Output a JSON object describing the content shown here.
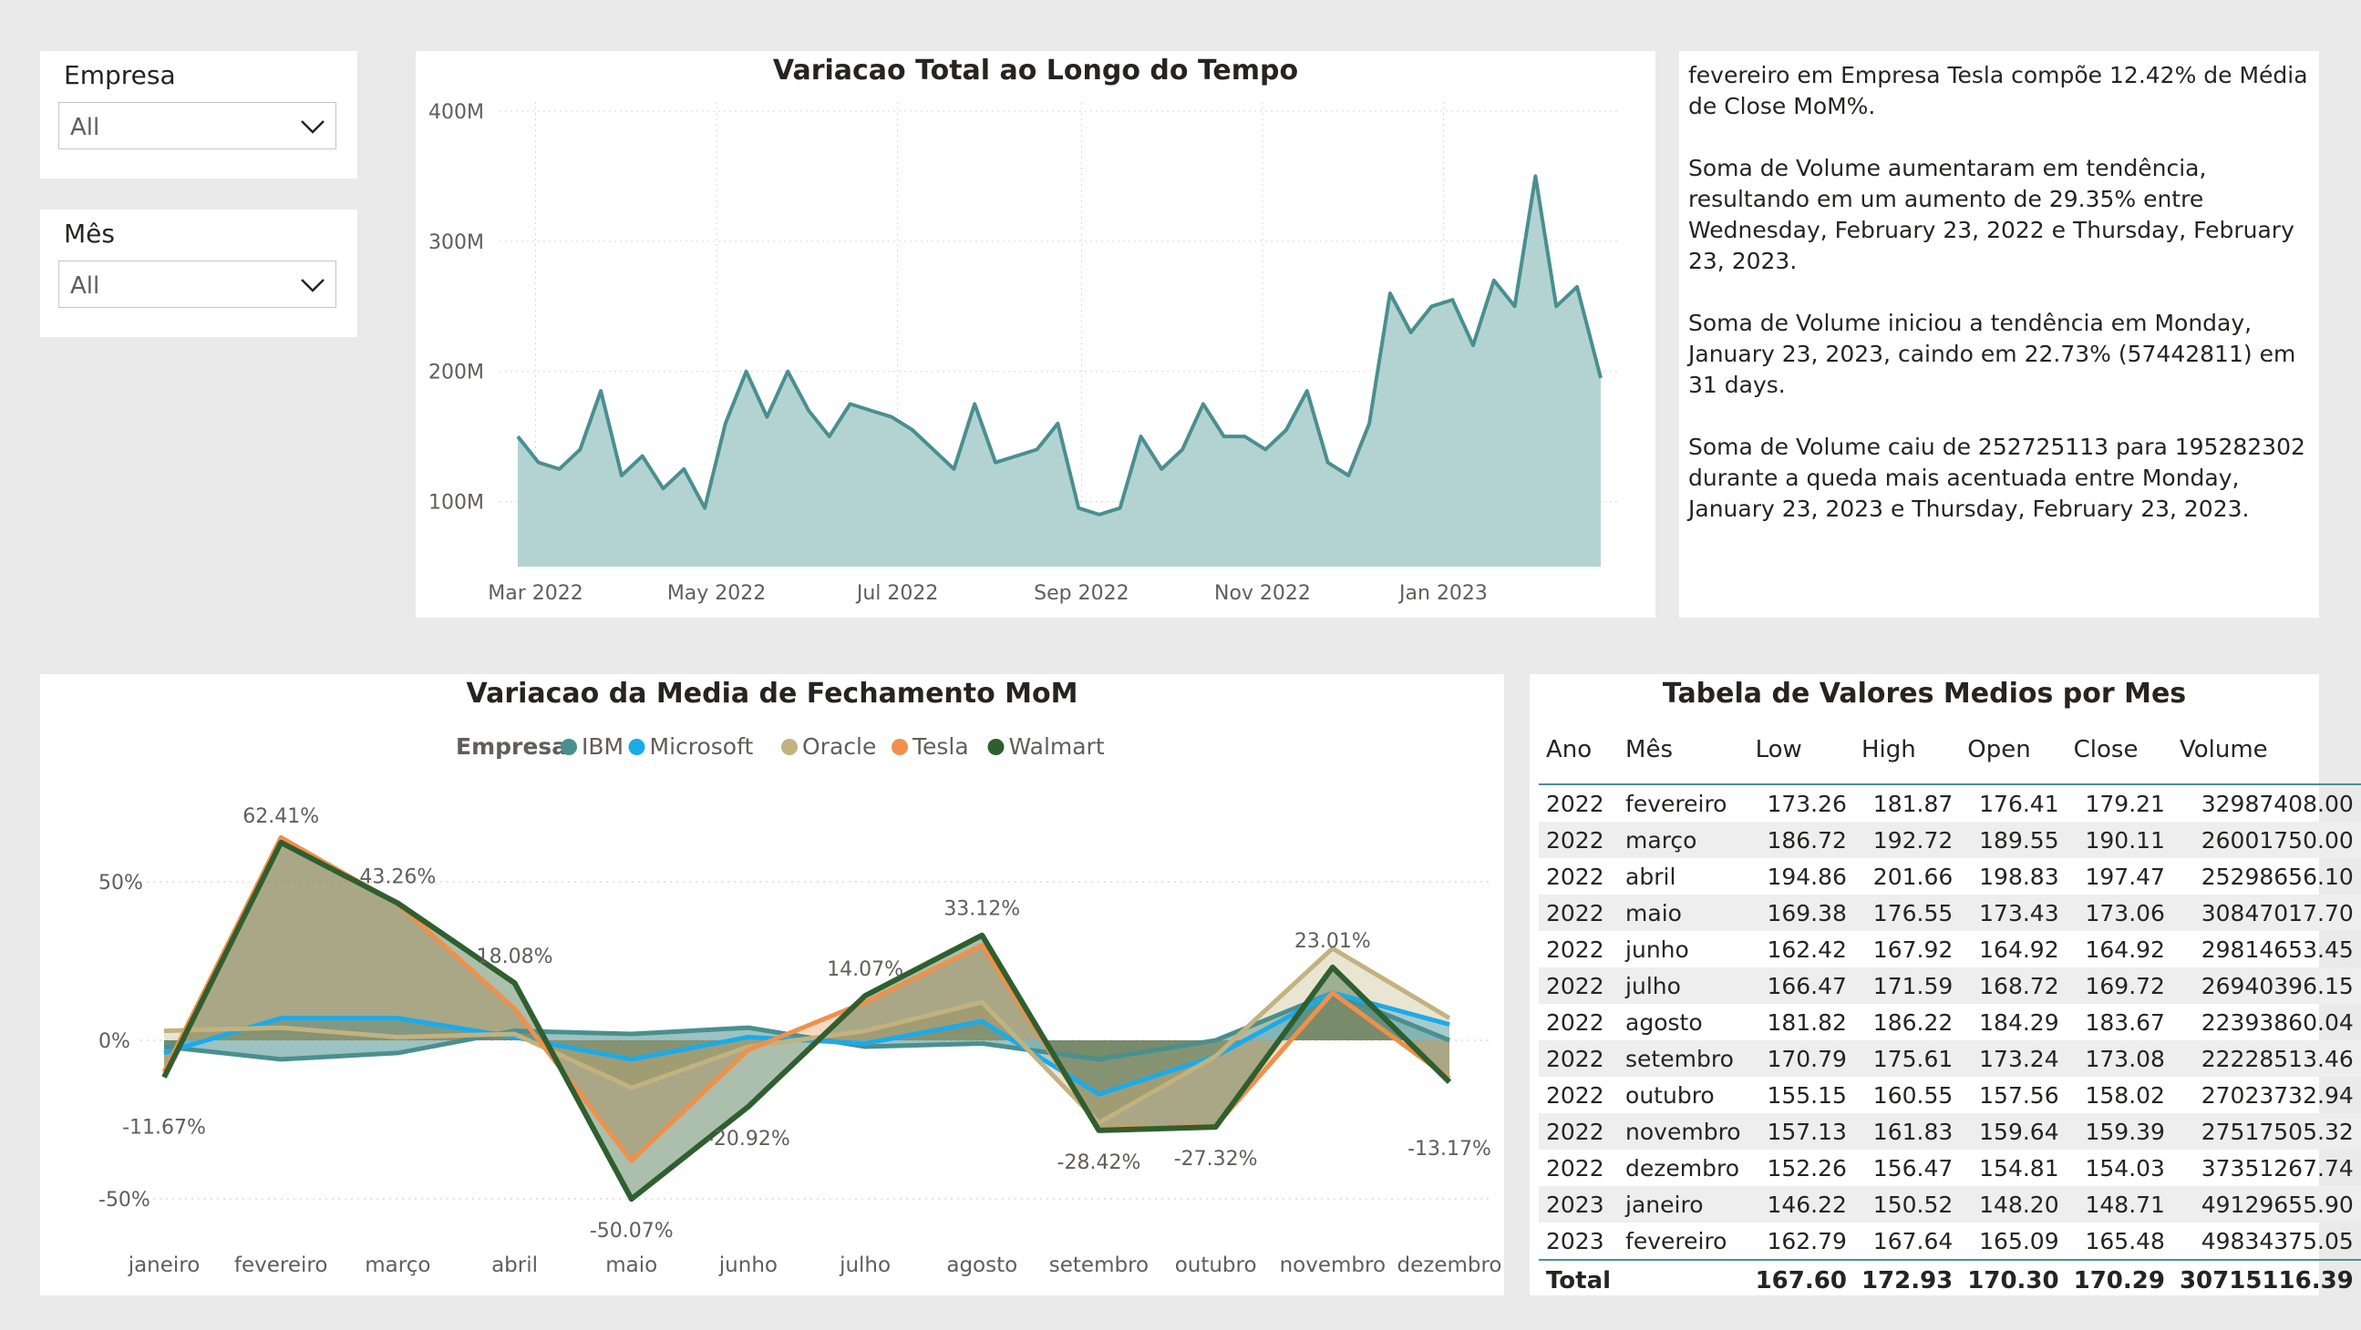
{
  "slicers": [
    {
      "label": "Empresa",
      "value": "All"
    },
    {
      "label": "Mês",
      "value": "All"
    }
  ],
  "area_chart": {
    "title": "Variacao Total ao Longo do Tempo",
    "y_ticks": [
      "400M",
      "300M",
      "200M",
      "100M"
    ],
    "x_ticks": [
      "Mar 2022",
      "May 2022",
      "Jul 2022",
      "Sep 2022",
      "Nov 2022",
      "Jan 2023"
    ],
    "color": "#4a8f8f",
    "fill": "#b3d3d3"
  },
  "narrative": [
    "fevereiro em Empresa Tesla compõe 12.42% de Média de Close MoM%.",
    "Soma de Volume aumentaram em tendência, resultando em um aumento de 29.35% entre Wednesday, February 23, 2022 e Thursday, February 23, 2023.",
    "Soma de Volume iniciou a tendência em Monday, January 23, 2023, caindo em 22.73% (57442811) em 31 days.",
    "Soma de Volume caiu de 252725113 para 195282302 durante a queda mais acentuada entre Monday, January 23, 2023 e Thursday, February 23, 2023."
  ],
  "mom_chart": {
    "title": "Variacao da Media de Fechamento MoM",
    "legend_title": "Empresa",
    "y_ticks": [
      "50%",
      "0%",
      "-50%"
    ],
    "data_labels": [
      "-11.67%",
      "62.41%",
      "43.26%",
      "18.08%",
      "-50.07%",
      "-20.92%",
      "14.07%",
      "33.12%",
      "-28.42%",
      "-27.32%",
      "23.01%",
      "-13.17%"
    ]
  },
  "table": {
    "title": "Tabela de Valores Medios por Mes",
    "columns": [
      "Ano",
      "Mês",
      "Low",
      "High",
      "Open",
      "Close",
      "Volume"
    ],
    "rows": [
      [
        "2022",
        "fevereiro",
        "173.26",
        "181.87",
        "176.41",
        "179.21",
        "32987408.00"
      ],
      [
        "2022",
        "março",
        "186.72",
        "192.72",
        "189.55",
        "190.11",
        "26001750.00"
      ],
      [
        "2022",
        "abril",
        "194.86",
        "201.66",
        "198.83",
        "197.47",
        "25298656.10"
      ],
      [
        "2022",
        "maio",
        "169.38",
        "176.55",
        "173.43",
        "173.06",
        "30847017.70"
      ],
      [
        "2022",
        "junho",
        "162.42",
        "167.92",
        "164.92",
        "164.92",
        "29814653.45"
      ],
      [
        "2022",
        "julho",
        "166.47",
        "171.59",
        "168.72",
        "169.72",
        "26940396.15"
      ],
      [
        "2022",
        "agosto",
        "181.82",
        "186.22",
        "184.29",
        "183.67",
        "22393860.04"
      ],
      [
        "2022",
        "setembro",
        "170.79",
        "175.61",
        "173.24",
        "173.08",
        "22228513.46"
      ],
      [
        "2022",
        "outubro",
        "155.15",
        "160.55",
        "157.56",
        "158.02",
        "27023732.94"
      ],
      [
        "2022",
        "novembro",
        "157.13",
        "161.83",
        "159.64",
        "159.39",
        "27517505.32"
      ],
      [
        "2022",
        "dezembro",
        "152.26",
        "156.47",
        "154.81",
        "154.03",
        "37351267.74"
      ],
      [
        "2023",
        "janeiro",
        "146.22",
        "150.52",
        "148.20",
        "148.71",
        "49129655.90"
      ],
      [
        "2023",
        "fevereiro",
        "162.79",
        "167.64",
        "165.09",
        "165.48",
        "49834375.05"
      ]
    ],
    "total": [
      "Total",
      "",
      "167.60",
      "172.93",
      "170.30",
      "170.29",
      "30715116.39"
    ]
  },
  "chart_data": [
    {
      "type": "area",
      "title": "Variacao Total ao Longo do Tempo",
      "xlabel": "",
      "ylabel": "",
      "ylim": [
        50000000,
        400000000
      ],
      "grid": true,
      "x": [
        "2022-02-23",
        "2022-03-02",
        "2022-03-09",
        "2022-03-16",
        "2022-03-23",
        "2022-03-30",
        "2022-04-06",
        "2022-04-13",
        "2022-04-20",
        "2022-04-27",
        "2022-05-04",
        "2022-05-11",
        "2022-05-18",
        "2022-05-25",
        "2022-06-01",
        "2022-06-08",
        "2022-06-15",
        "2022-06-22",
        "2022-06-29",
        "2022-07-06",
        "2022-07-13",
        "2022-07-20",
        "2022-07-27",
        "2022-08-03",
        "2022-08-10",
        "2022-08-17",
        "2022-08-24",
        "2022-08-31",
        "2022-09-07",
        "2022-09-14",
        "2022-09-21",
        "2022-09-28",
        "2022-10-05",
        "2022-10-12",
        "2022-10-19",
        "2022-10-26",
        "2022-11-02",
        "2022-11-09",
        "2022-11-16",
        "2022-11-23",
        "2022-11-30",
        "2022-12-07",
        "2022-12-14",
        "2022-12-21",
        "2022-12-28",
        "2023-01-04",
        "2023-01-11",
        "2023-01-18",
        "2023-01-25",
        "2023-02-01",
        "2023-02-08",
        "2023-02-15",
        "2023-02-23"
      ],
      "values": [
        150000000,
        130000000,
        125000000,
        140000000,
        185000000,
        120000000,
        135000000,
        110000000,
        125000000,
        95000000,
        160000000,
        200000000,
        165000000,
        200000000,
        170000000,
        150000000,
        175000000,
        170000000,
        165000000,
        155000000,
        140000000,
        125000000,
        175000000,
        130000000,
        135000000,
        140000000,
        160000000,
        95000000,
        90000000,
        95000000,
        150000000,
        125000000,
        140000000,
        175000000,
        150000000,
        150000000,
        140000000,
        155000000,
        185000000,
        130000000,
        120000000,
        160000000,
        260000000,
        230000000,
        250000000,
        255000000,
        220000000,
        270000000,
        250000000,
        350000000,
        250000000,
        265000000,
        195000000
      ],
      "series": [
        {
          "name": "Soma de Volume",
          "values": "see values"
        }
      ]
    },
    {
      "type": "line",
      "title": "Variacao da Media de Fechamento MoM",
      "categories": [
        "janeiro",
        "fevereiro",
        "março",
        "abril",
        "maio",
        "junho",
        "julho",
        "agosto",
        "setembro",
        "outubro",
        "novembro",
        "dezembro"
      ],
      "ylim": [
        -60,
        70
      ],
      "legend": "top",
      "series": [
        {
          "name": "IBM",
          "color": "#4a8f8f",
          "values": [
            -2,
            -6,
            -4,
            3,
            2,
            4,
            -2,
            -1,
            -6,
            0,
            15,
            0
          ]
        },
        {
          "name": "Microsoft",
          "color": "#1aabea",
          "values": [
            -4,
            7,
            7,
            1,
            -6,
            1,
            -1,
            6,
            -17,
            -5,
            15,
            5
          ]
        },
        {
          "name": "Oracle",
          "color": "#c2b280",
          "values": [
            3,
            4,
            1,
            2,
            -15,
            -2,
            3,
            12,
            -26,
            -5,
            29,
            7
          ]
        },
        {
          "name": "Tesla",
          "color": "#f0904a",
          "values": [
            -10,
            64,
            43,
            10,
            -38,
            -3,
            12,
            30,
            -28,
            -27,
            15,
            -12
          ]
        },
        {
          "name": "Walmart",
          "color": "#2f5f2f",
          "values": [
            -11.67,
            62.41,
            43.26,
            18.08,
            -50.07,
            -20.92,
            14.07,
            33.12,
            -28.42,
            -27.32,
            23.01,
            -13.17
          ]
        }
      ]
    },
    {
      "type": "table",
      "title": "Tabela de Valores Medios por Mes"
    }
  ]
}
